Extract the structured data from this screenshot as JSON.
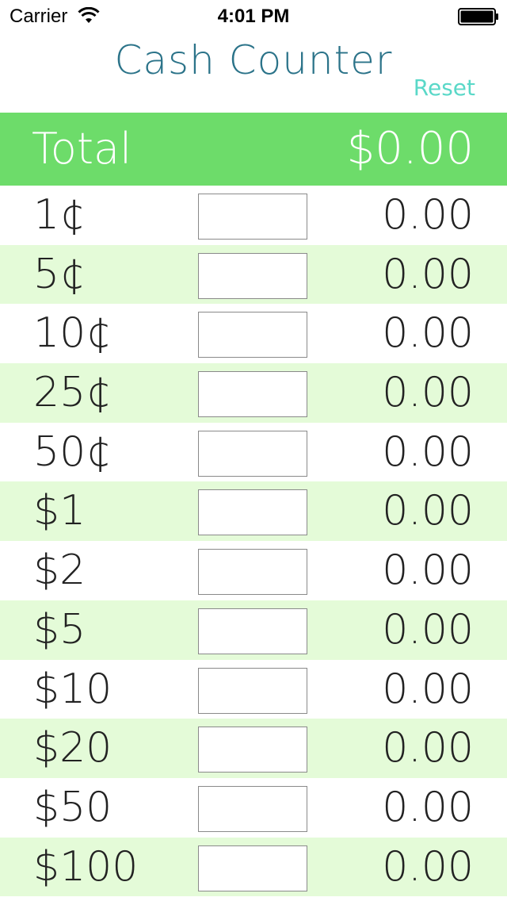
{
  "status_bar": {
    "carrier": "Carrier",
    "time": "4:01 PM",
    "wifi_icon": "wifi-icon",
    "battery_icon": "battery-icon"
  },
  "header": {
    "title": "Cash Counter",
    "reset_label": "Reset"
  },
  "total": {
    "label": "Total",
    "amount": "$0.00",
    "bar_color": "#6ddc6a"
  },
  "colors": {
    "title": "#2b7389",
    "reset": "#5ad8c8",
    "row_alt": "#e4fbd8"
  },
  "rows": [
    {
      "denomination": "1¢",
      "count": "",
      "subtotal": "0.00"
    },
    {
      "denomination": "5¢",
      "count": "",
      "subtotal": "0.00"
    },
    {
      "denomination": "10¢",
      "count": "",
      "subtotal": "0.00"
    },
    {
      "denomination": "25¢",
      "count": "",
      "subtotal": "0.00"
    },
    {
      "denomination": "50¢",
      "count": "",
      "subtotal": "0.00"
    },
    {
      "denomination": "$1",
      "count": "",
      "subtotal": "0.00"
    },
    {
      "denomination": "$2",
      "count": "",
      "subtotal": "0.00"
    },
    {
      "denomination": "$5",
      "count": "",
      "subtotal": "0.00"
    },
    {
      "denomination": "$10",
      "count": "",
      "subtotal": "0.00"
    },
    {
      "denomination": "$20",
      "count": "",
      "subtotal": "0.00"
    },
    {
      "denomination": "$50",
      "count": "",
      "subtotal": "0.00"
    },
    {
      "denomination": "$100",
      "count": "",
      "subtotal": "0.00"
    }
  ]
}
